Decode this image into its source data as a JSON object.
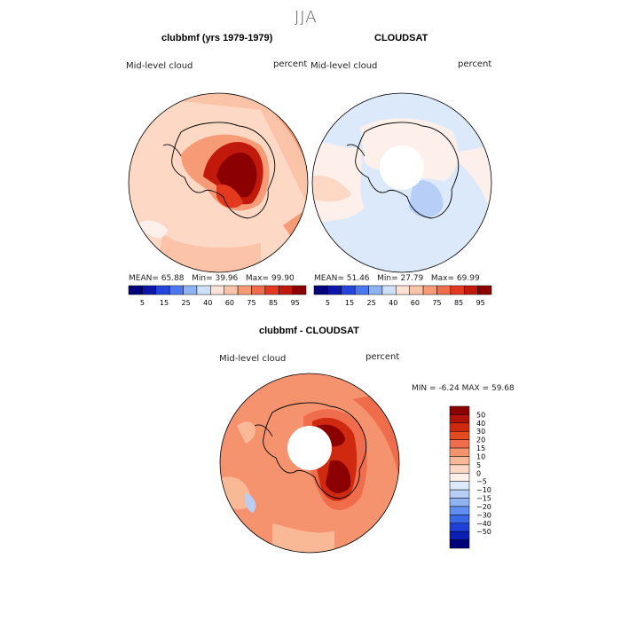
{
  "page": {
    "title": "JJA"
  },
  "colors": {
    "abs_scale": [
      "#00007a",
      "#0d16a8",
      "#2546de",
      "#4b78f0",
      "#8eb3f3",
      "#cfe0fa",
      "#fde3d6",
      "#fbc3a8",
      "#f79a76",
      "#ef6d4c",
      "#e2391f",
      "#c11a0c",
      "#8b0000"
    ],
    "diff_scale": [
      "#8b0000",
      "#b01408",
      "#cf2a0f",
      "#e44a22",
      "#ef6d4c",
      "#f6936f",
      "#fab996",
      "#fdd8c4",
      "#fdf0ea",
      "#dce9fb",
      "#b7cef6",
      "#8fb3f1",
      "#5f8ef0",
      "#3a67e6",
      "#1e3fd8",
      "#0c1fb5",
      "#00007a"
    ],
    "land_outline": "#000000",
    "hole": "#ffffff"
  },
  "chart_data": [
    {
      "type": "heatmap",
      "projection": "south polar stereographic",
      "title": "clubbmf (yrs 1979-1979)",
      "left_label": "Mid-level cloud",
      "right_label": "percent",
      "stats": {
        "mean_label": "MEAN=",
        "mean": "65.88",
        "min_label": "Min=",
        "min": "39.96",
        "max_label": "Max=",
        "max": "99.90"
      },
      "colorbar_ticks": [
        "5",
        "15",
        "25",
        "40",
        "60",
        "75",
        "85",
        "95"
      ],
      "levels": [
        5,
        10,
        15,
        20,
        25,
        30,
        40,
        50,
        60,
        70,
        75,
        80,
        85,
        90,
        95
      ],
      "field": {
        "background_level": 60,
        "regions": [
          {
            "name": "East Antarctica interior",
            "value": 95
          },
          {
            "name": "Ross/Weddell margins",
            "value": 75
          },
          {
            "name": "Southern Ocean ring",
            "value": 60
          },
          {
            "name": "Patches near 60S",
            "value": 40
          }
        ]
      }
    },
    {
      "type": "heatmap",
      "projection": "south polar stereographic",
      "title": "CLOUDSAT",
      "left_label": "Mid-level cloud",
      "right_label": "percent",
      "stats": {
        "mean_label": "MEAN=",
        "mean": "51.46",
        "min_label": "Min=",
        "min": "27.79",
        "max_label": "Max=",
        "max": "69.99"
      },
      "colorbar_ticks": [
        "5",
        "15",
        "25",
        "40",
        "60",
        "75",
        "85",
        "95"
      ],
      "levels": [
        5,
        10,
        15,
        20,
        25,
        30,
        40,
        50,
        60,
        70,
        75,
        80,
        85,
        90,
        95
      ],
      "field": {
        "background_level": 50,
        "regions": [
          {
            "name": "Southern Ocean",
            "value": 50
          },
          {
            "name": "Antarctic coast",
            "value": 60
          },
          {
            "name": "Near pole sector",
            "value": 40
          },
          {
            "name": "Polar gap",
            "value": null
          }
        ]
      }
    },
    {
      "type": "heatmap",
      "projection": "south polar stereographic",
      "title": "clubbmf - CLOUDSAT",
      "left_label": "Mid-level cloud",
      "right_label": "percent",
      "stats": {
        "min_label": "MIN =",
        "min": "-6.24",
        "max_label": "MAX =",
        "max": "59.68"
      },
      "colorbar_ticks": [
        "50",
        "40",
        "30",
        "20",
        "15",
        "10",
        "5",
        "0",
        "−5",
        "−10",
        "−15",
        "−20",
        "−30",
        "−40",
        "−50"
      ],
      "levels": [
        50,
        40,
        30,
        20,
        15,
        10,
        5,
        0,
        -5,
        -10,
        -15,
        -20,
        -30,
        -40,
        -50
      ],
      "field": {
        "background_level": 15,
        "regions": [
          {
            "name": "East Antarctica interior",
            "value": 50
          },
          {
            "name": "Coastal Antarctica",
            "value": 30
          },
          {
            "name": "Southern Ocean",
            "value": 15
          },
          {
            "name": "Scattered patches",
            "value": -5
          }
        ]
      }
    }
  ]
}
